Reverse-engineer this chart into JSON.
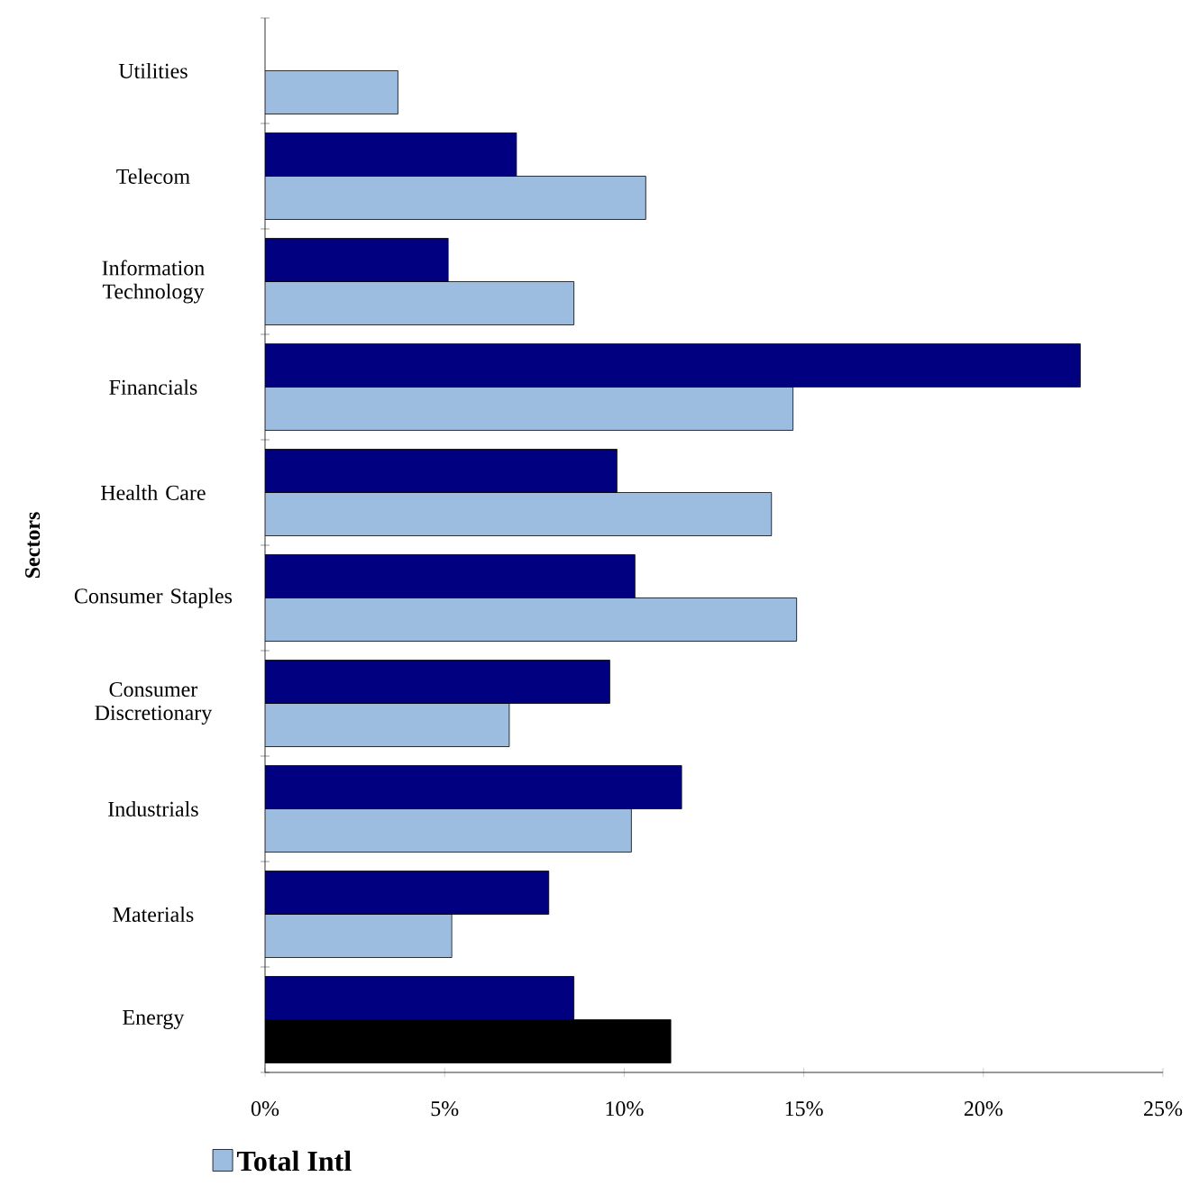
{
  "chart_data": {
    "type": "bar",
    "orientation": "horizontal",
    "ylabel": "Sectors",
    "categories": [
      "Utilities",
      "Telecom",
      "Information Technology",
      "Financials",
      "Health Care",
      "Consumer Staples",
      "Consumer Discretionary",
      "Industrials",
      "Materials",
      "Energy"
    ],
    "series": [
      {
        "name": "Total Intl",
        "color": "#9dbde0",
        "colors": [
          "#9dbde0",
          "#9dbde0",
          "#9dbde0",
          "#9dbde0",
          "#9dbde0",
          "#9dbde0",
          "#9dbde0",
          "#9dbde0",
          "#9dbde0",
          "#000000"
        ],
        "values": [
          3.7,
          10.6,
          8.6,
          14.7,
          14.1,
          14.8,
          6.8,
          10.2,
          5.2,
          11.3
        ]
      },
      {
        "color": "#000080",
        "values": [
          null,
          7.0,
          5.1,
          22.7,
          9.8,
          10.3,
          9.6,
          11.6,
          7.9,
          8.6
        ]
      }
    ],
    "xlim": [
      0,
      25
    ],
    "xticks": [
      {
        "value": 0,
        "label": "0%"
      },
      {
        "value": 5,
        "label": "5%"
      },
      {
        "value": 10,
        "label": "10%"
      },
      {
        "value": 15,
        "label": "15%"
      },
      {
        "value": 20,
        "label": "20%"
      },
      {
        "value": 25,
        "label": "25%"
      }
    ],
    "legend": "bottom",
    "grid": false
  }
}
